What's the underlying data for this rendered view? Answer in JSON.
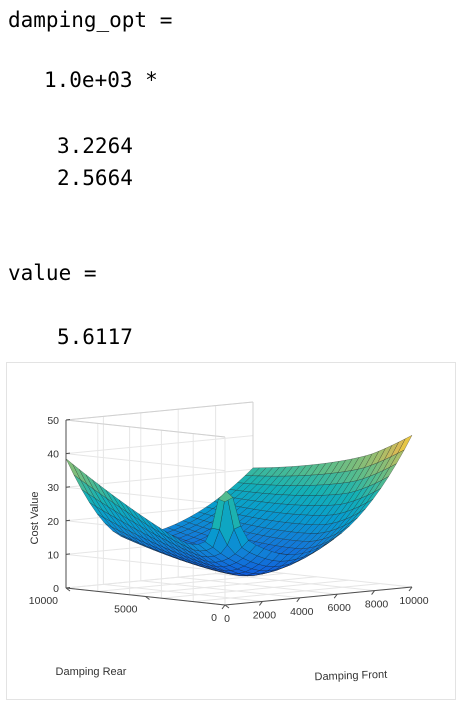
{
  "console": {
    "var1_header": "damping_opt =",
    "var1_scale": "1.0e+03 *",
    "var1_values": [
      "3.2264",
      "2.5664"
    ],
    "var2_header": "value =",
    "var2_value": "5.6117"
  },
  "chart_data": {
    "type": "surface",
    "title": "",
    "zlabel": "Cost Value",
    "xlabel": "Damping Front",
    "ylabel": "Damping Rear",
    "zlim": [
      0,
      50
    ],
    "z_ticks": [
      "0",
      "10",
      "20",
      "30",
      "40",
      "50"
    ],
    "x_ticks": [
      "0",
      "2000",
      "4000",
      "6000",
      "8000",
      "10000"
    ],
    "y_ticks": [
      "0",
      "5000",
      "10000"
    ],
    "xlim": [
      0,
      10000
    ],
    "ylim": [
      0,
      10000
    ],
    "colormap": "parula",
    "grid": true,
    "minimum": {
      "x": 3226.4,
      "y": 2566.4,
      "z": 5.6117
    }
  }
}
